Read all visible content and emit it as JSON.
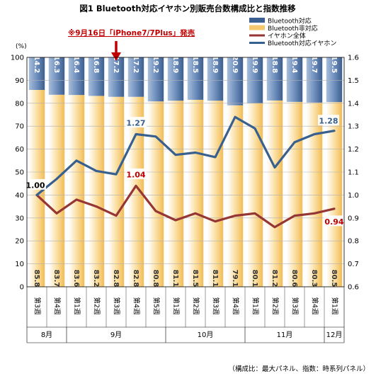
{
  "chart_data": {
    "type": "bar",
    "title": "図1 Bluetooth対応イヤホン別販売台数構成比と指数推移",
    "annotation": "※9月16日「iPhone7/7Plus」発売",
    "footnote": "（構成比：最大パネル、指数：時系列パネル）",
    "left_axis_unit": "(%)",
    "left_ylim": [
      0,
      100
    ],
    "left_ticks": [
      "0",
      "10",
      "20",
      "30",
      "40",
      "50",
      "60",
      "70",
      "80",
      "90",
      "100"
    ],
    "right_ylim": [
      0.6,
      1.6
    ],
    "right_ticks": [
      "0.6",
      "0.7",
      "0.8",
      "0.9",
      "1.0",
      "1.1",
      "1.2",
      "1.3",
      "1.4",
      "1.5",
      "1.6"
    ],
    "categories": [
      "第3週",
      "第4週",
      "第1週",
      "第2週",
      "第3週",
      "第4週",
      "第5週",
      "第1週",
      "第2週",
      "第3週",
      "第4週",
      "第1週",
      "第2週",
      "第3週",
      "第4週",
      "第1週"
    ],
    "months": [
      {
        "label": "8月",
        "span": 2
      },
      {
        "label": "9月",
        "span": 5
      },
      {
        "label": "10月",
        "span": 4
      },
      {
        "label": "11月",
        "span": 4
      },
      {
        "label": "12月",
        "span": 1
      }
    ],
    "annotation_index": 4,
    "series": [
      {
        "name": "Bluetooth対応",
        "values": [
          14.2,
          16.3,
          16.4,
          16.8,
          17.2,
          17.2,
          19.2,
          18.9,
          18.5,
          18.9,
          20.9,
          19.9,
          18.8,
          19.4,
          19.7,
          19.5
        ],
        "color": "#3b5f91"
      },
      {
        "name": "Bluetooth非対応",
        "values": [
          85.8,
          83.7,
          83.6,
          83.2,
          82.8,
          82.8,
          80.8,
          81.1,
          81.5,
          81.1,
          79.1,
          80.1,
          81.2,
          80.6,
          80.3,
          80.5
        ],
        "color": "#f5c86f"
      },
      {
        "name": "イヤホン全体",
        "axis": "right",
        "values": [
          1.0,
          0.92,
          0.98,
          0.95,
          0.91,
          1.04,
          0.93,
          0.89,
          0.92,
          0.885,
          0.91,
          0.92,
          0.86,
          0.91,
          0.92,
          0.94
        ],
        "color": "#963634"
      },
      {
        "name": "Bluetooth対応イヤホン",
        "axis": "right",
        "values": [
          1.0,
          1.07,
          1.15,
          1.105,
          1.09,
          1.265,
          1.255,
          1.175,
          1.185,
          1.165,
          1.34,
          1.29,
          1.12,
          1.23,
          1.265,
          1.28
        ],
        "color": "#38608f"
      }
    ],
    "callouts": [
      {
        "series": 3,
        "index": 0,
        "text": "1.00"
      },
      {
        "series": 3,
        "index": 5,
        "text": "1.27"
      },
      {
        "series": 3,
        "index": 15,
        "text": "1.28"
      },
      {
        "series": 2,
        "index": 5,
        "text": "1.04"
      },
      {
        "series": 2,
        "index": 15,
        "text": "0.94"
      }
    ]
  }
}
